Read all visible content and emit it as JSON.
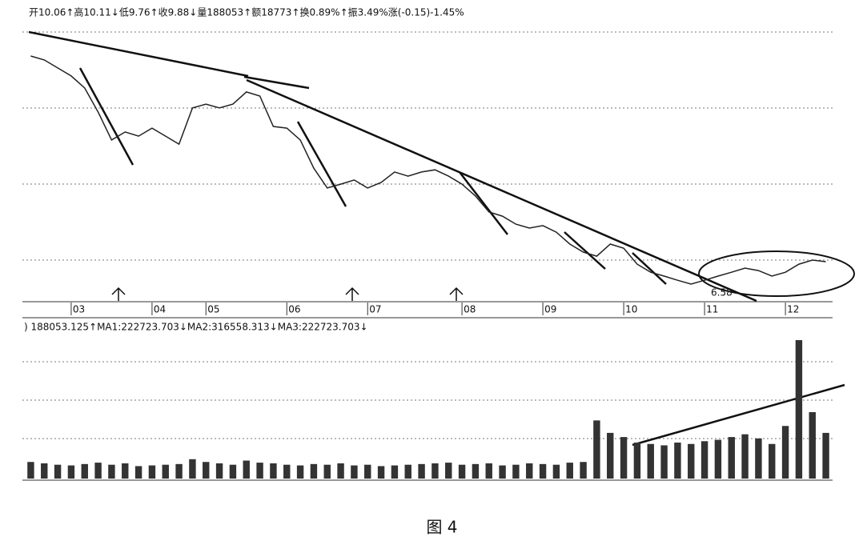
{
  "caption": "图 4",
  "chart_data": [
    {
      "type": "line",
      "title": "开10.06↑高10.11↓低9.76↑收9.88↓量188053↑额18773↑换0.89%↑振3.49%涨(-0.15)-1.45%",
      "annotation": "6.58",
      "categories": [
        null,
        null,
        null,
        "03",
        null,
        null,
        null,
        null,
        null,
        "04",
        null,
        null,
        null,
        "05",
        null,
        null,
        null,
        null,
        null,
        "06",
        null,
        null,
        null,
        null,
        null,
        "07",
        null,
        null,
        null,
        null,
        null,
        null,
        "08",
        null,
        null,
        null,
        null,
        null,
        "09",
        null,
        null,
        null,
        null,
        null,
        "10",
        null,
        null,
        null,
        null,
        null,
        "11",
        null,
        null,
        null,
        null,
        null,
        "12",
        null,
        null,
        null
      ],
      "values": [
        14.84,
        14.7,
        14.41,
        14.12,
        13.68,
        12.81,
        11.8,
        12.09,
        11.94,
        12.23,
        11.94,
        11.65,
        12.96,
        13.1,
        12.96,
        13.1,
        13.54,
        13.39,
        12.29,
        12.23,
        11.8,
        10.78,
        10.06,
        10.2,
        10.35,
        10.06,
        10.26,
        10.64,
        10.49,
        10.64,
        10.72,
        10.49,
        10.2,
        9.77,
        9.19,
        9.04,
        8.75,
        8.61,
        8.7,
        8.46,
        8.03,
        7.74,
        7.59,
        8.03,
        7.88,
        7.3,
        7.01,
        6.87,
        6.72,
        6.58,
        6.72,
        6.87,
        7.01,
        7.16,
        7.07,
        6.87,
        7.01,
        7.3,
        7.45,
        7.39
      ],
      "color": "#222222",
      "ylim": [
        6,
        16
      ]
    },
    {
      "type": "bar",
      "title": ") 188053.125↑MA1:222723.703↓MA2:316558.313↓MA3:222723.703↓",
      "values": [
        120000,
        110000,
        100000,
        95000,
        105000,
        115000,
        100000,
        110000,
        90000,
        95000,
        100000,
        105000,
        140000,
        120000,
        110000,
        100000,
        130000,
        115000,
        110000,
        100000,
        95000,
        105000,
        100000,
        110000,
        95000,
        100000,
        90000,
        95000,
        100000,
        105000,
        110000,
        115000,
        100000,
        105000,
        110000,
        95000,
        100000,
        110000,
        105000,
        100000,
        115000,
        120000,
        420000,
        330000,
        300000,
        260000,
        250000,
        240000,
        260000,
        250000,
        270000,
        280000,
        300000,
        320000,
        290000,
        250000,
        380000,
        1000000,
        480000,
        330000
      ],
      "color": "#333333",
      "ylim": [
        0,
        1000000
      ]
    }
  ]
}
